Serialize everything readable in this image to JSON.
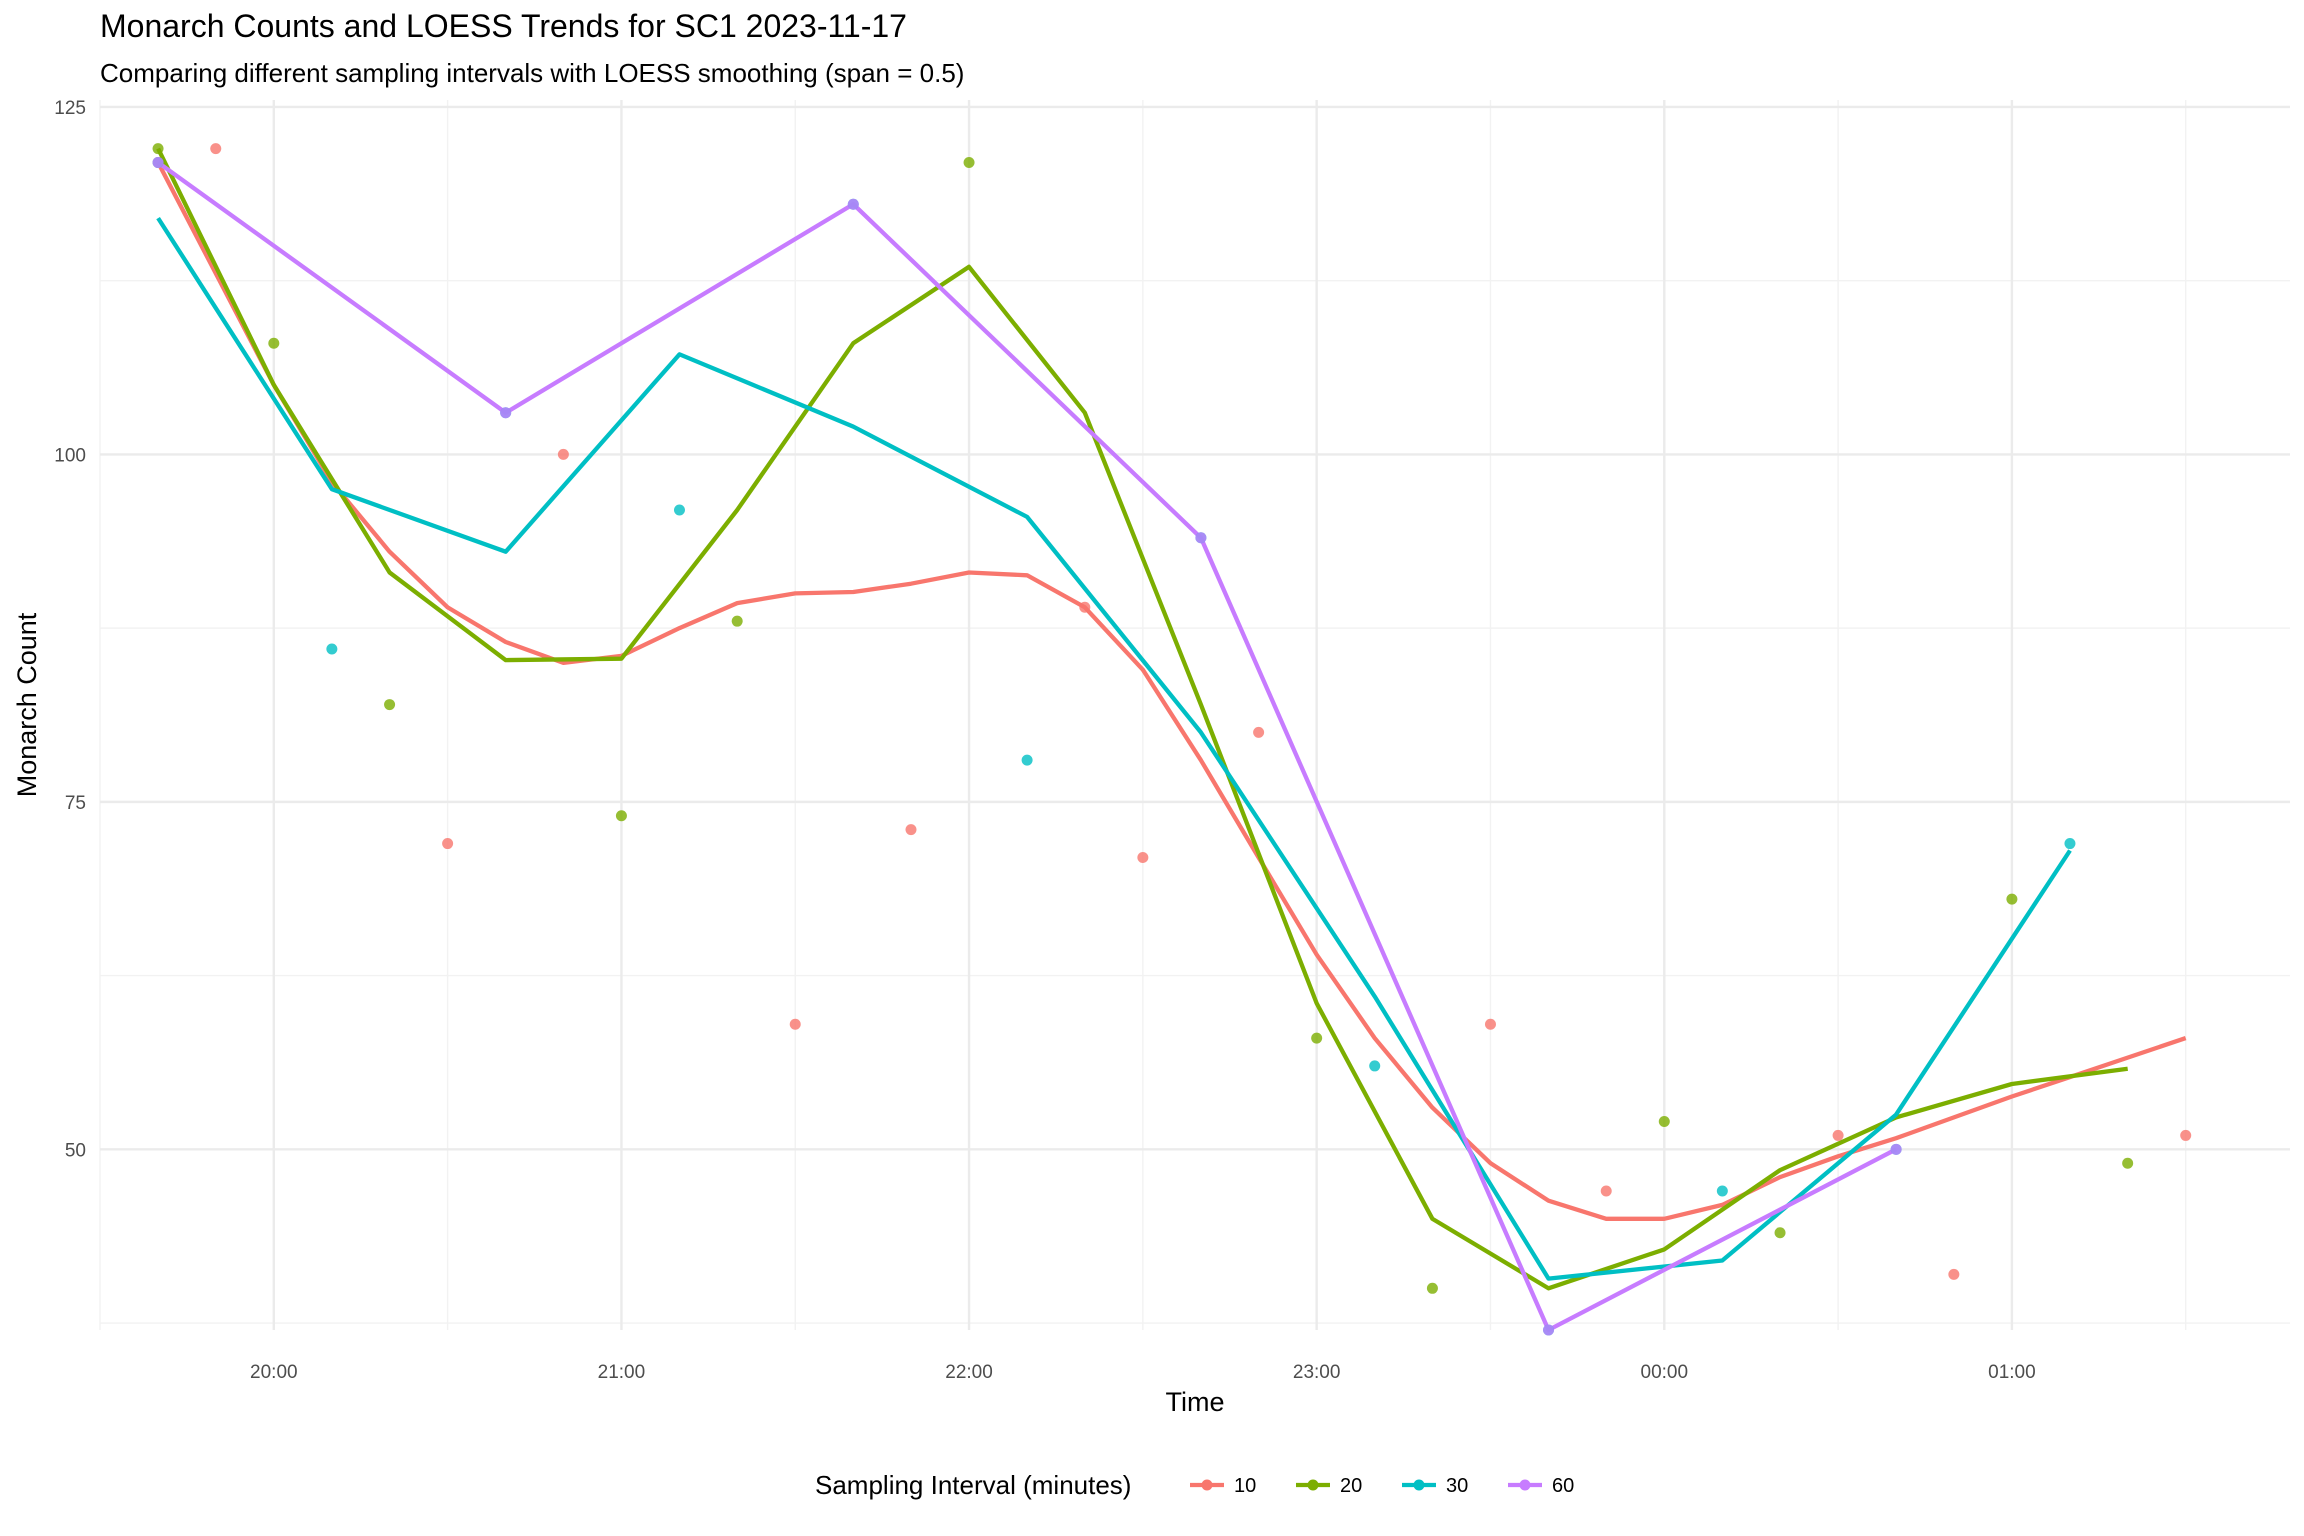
{
  "chart_data": {
    "type": "line",
    "title": "Monarch Counts and LOESS Trends for SC1 2023-11-17",
    "subtitle": "Comparing different sampling intervals with LOESS smoothing (span = 0.5)",
    "xlabel": "Time",
    "ylabel": "Monarch Count",
    "x_unit": "time of day (hours after 19:00 on 2023-11-17, continuing past midnight)",
    "xlim": [
      19.5,
      25.8
    ],
    "ylim": [
      37,
      125.5
    ],
    "x_ticks": [
      {
        "value": 20,
        "label": "20:00"
      },
      {
        "value": 21,
        "label": "21:00"
      },
      {
        "value": 22,
        "label": "22:00"
      },
      {
        "value": 23,
        "label": "23:00"
      },
      {
        "value": 24,
        "label": "00:00"
      },
      {
        "value": 25,
        "label": "01:00"
      }
    ],
    "y_ticks": [
      50,
      75,
      100,
      125
    ],
    "grid": true,
    "legend": {
      "title": "Sampling Interval (minutes)",
      "position": "bottom"
    },
    "series": [
      {
        "name": "10",
        "color": "#F8766D",
        "points": [
          [
            19.667,
            121
          ],
          [
            19.833,
            122
          ],
          [
            20.5,
            72
          ],
          [
            20.833,
            100
          ],
          [
            21.5,
            59
          ],
          [
            21.833,
            73
          ],
          [
            22.333,
            89
          ],
          [
            22.5,
            71
          ],
          [
            22.833,
            80
          ],
          [
            23.5,
            59
          ],
          [
            23.833,
            47
          ],
          [
            24.5,
            51
          ],
          [
            24.833,
            41
          ],
          [
            25.5,
            51
          ]
        ],
        "trend": [
          [
            19.667,
            121
          ],
          [
            20.0,
            105
          ],
          [
            20.167,
            98
          ],
          [
            20.333,
            93
          ],
          [
            20.5,
            89
          ],
          [
            20.667,
            86.5
          ],
          [
            20.833,
            85
          ],
          [
            21.0,
            85.5
          ],
          [
            21.167,
            87.5
          ],
          [
            21.333,
            89.3
          ],
          [
            21.5,
            90
          ],
          [
            21.667,
            90.1
          ],
          [
            21.833,
            90.7
          ],
          [
            22.0,
            91.5
          ],
          [
            22.167,
            91.3
          ],
          [
            22.333,
            89
          ],
          [
            22.5,
            84.5
          ],
          [
            22.667,
            78
          ],
          [
            22.833,
            71
          ],
          [
            23.0,
            64
          ],
          [
            23.167,
            58
          ],
          [
            23.333,
            53
          ],
          [
            23.5,
            49
          ],
          [
            23.667,
            46.3
          ],
          [
            23.833,
            45
          ],
          [
            24.0,
            45
          ],
          [
            24.167,
            46
          ],
          [
            24.333,
            48
          ],
          [
            24.5,
            49.5
          ],
          [
            24.667,
            50.8
          ],
          [
            24.833,
            52.3
          ],
          [
            25.0,
            53.8
          ],
          [
            25.167,
            55.2
          ],
          [
            25.333,
            56.6
          ],
          [
            25.5,
            58
          ]
        ]
      },
      {
        "name": "20",
        "color": "#7CAE00",
        "points": [
          [
            19.667,
            122
          ],
          [
            20.0,
            108
          ],
          [
            20.333,
            82
          ],
          [
            21.0,
            74
          ],
          [
            21.333,
            88
          ],
          [
            22.0,
            121
          ],
          [
            23.0,
            58
          ],
          [
            23.333,
            40
          ],
          [
            24.0,
            52
          ],
          [
            24.333,
            44
          ],
          [
            25.0,
            68
          ],
          [
            25.333,
            49
          ]
        ],
        "trend": [
          [
            19.667,
            122
          ],
          [
            20.0,
            105
          ],
          [
            20.333,
            91.5
          ],
          [
            20.667,
            85.2
          ],
          [
            21.0,
            85.3
          ],
          [
            21.333,
            96
          ],
          [
            21.667,
            108
          ],
          [
            22.0,
            113.5
          ],
          [
            22.333,
            103
          ],
          [
            22.667,
            82
          ],
          [
            23.0,
            60.5
          ],
          [
            23.333,
            45
          ],
          [
            23.667,
            40
          ],
          [
            24.0,
            42.8
          ],
          [
            24.333,
            48.5
          ],
          [
            24.667,
            52.3
          ],
          [
            25.0,
            54.7
          ],
          [
            25.333,
            55.8
          ]
        ]
      },
      {
        "name": "30",
        "color": "#00BFC4",
        "points": [
          [
            19.667,
            121
          ],
          [
            20.167,
            86
          ],
          [
            20.667,
            103
          ],
          [
            21.167,
            96
          ],
          [
            21.667,
            118
          ],
          [
            22.167,
            78
          ],
          [
            22.667,
            94
          ],
          [
            23.167,
            56
          ],
          [
            23.667,
            37
          ],
          [
            24.167,
            47
          ],
          [
            24.667,
            50
          ],
          [
            25.167,
            72
          ]
        ],
        "trend": [
          [
            19.667,
            117
          ],
          [
            20.167,
            97.5
          ],
          [
            20.667,
            93
          ],
          [
            21.167,
            107.2
          ],
          [
            21.667,
            102
          ],
          [
            22.167,
            95.5
          ],
          [
            22.667,
            80
          ],
          [
            23.167,
            61
          ],
          [
            23.667,
            40.7
          ],
          [
            24.167,
            42
          ],
          [
            24.667,
            52.5
          ],
          [
            25.167,
            71.5
          ]
        ]
      },
      {
        "name": "60",
        "color": "#C77CFF",
        "points": [
          [
            19.667,
            121
          ],
          [
            20.667,
            103
          ],
          [
            21.667,
            118
          ],
          [
            22.667,
            94
          ],
          [
            23.667,
            37
          ],
          [
            24.667,
            50
          ]
        ],
        "trend": [
          [
            19.667,
            121
          ],
          [
            20.667,
            103
          ],
          [
            21.667,
            118
          ],
          [
            22.667,
            94
          ],
          [
            23.667,
            37
          ],
          [
            24.667,
            50
          ]
        ]
      }
    ]
  }
}
